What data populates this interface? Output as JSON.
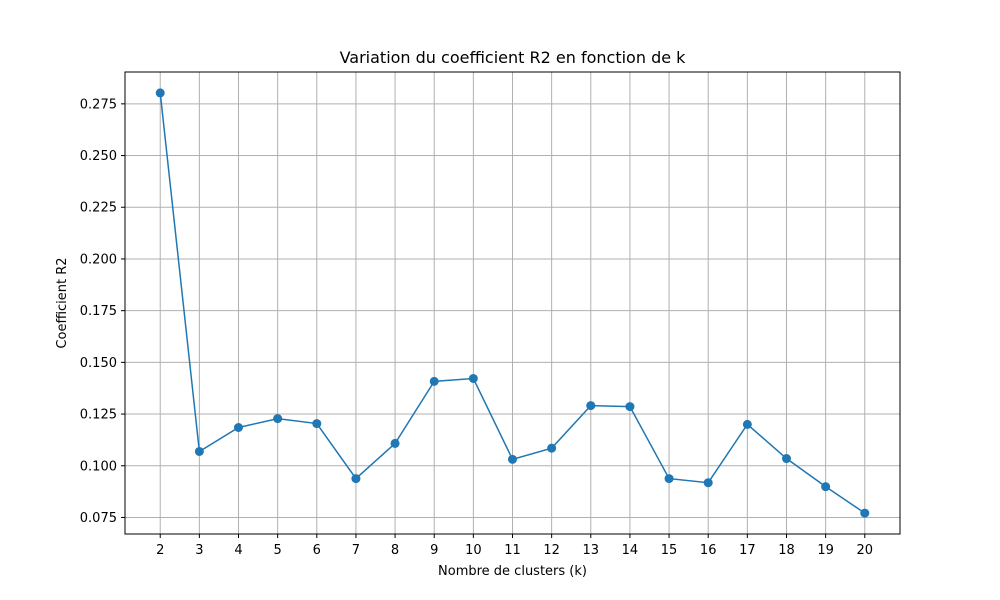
{
  "chart_data": {
    "type": "line",
    "title": "Variation du coefficient R2 en fonction de k",
    "xlabel": "Nombre de clusters (k)",
    "ylabel": "Coefficient R2",
    "x": [
      2,
      3,
      4,
      5,
      6,
      7,
      8,
      9,
      10,
      11,
      12,
      13,
      14,
      15,
      16,
      17,
      18,
      19,
      20
    ],
    "series": [
      {
        "values": [
          0.2803,
          0.1069,
          0.1185,
          0.1228,
          0.1204,
          0.0938,
          0.1108,
          0.1408,
          0.1422,
          0.1031,
          0.1085,
          0.1291,
          0.1286,
          0.0938,
          0.0918,
          0.12,
          0.1035,
          0.0899,
          0.0771
        ],
        "color": "#1f77b4",
        "marker": "circle"
      }
    ],
    "xticks": [
      "2",
      "3",
      "4",
      "5",
      "6",
      "7",
      "8",
      "9",
      "10",
      "11",
      "12",
      "13",
      "14",
      "15",
      "16",
      "17",
      "18",
      "19",
      "20"
    ],
    "yticks": [
      "0.075",
      "0.100",
      "0.125",
      "0.150",
      "0.175",
      "0.200",
      "0.225",
      "0.250",
      "0.275"
    ],
    "xlim": [
      1.1,
      20.9
    ],
    "ylim": [
      0.067,
      0.2904
    ],
    "grid": true,
    "legend": "none",
    "grid_color": "#b0b0b0"
  }
}
